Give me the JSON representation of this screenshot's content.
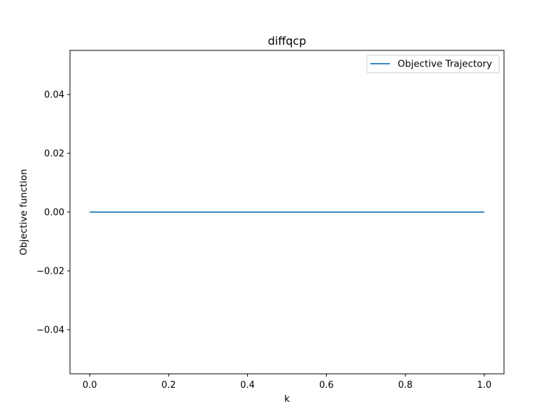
{
  "chart_data": {
    "type": "line",
    "title": "diffqcp",
    "xlabel": "k",
    "ylabel": "Objective function",
    "xlim": [
      -0.05,
      1.05
    ],
    "ylim": [
      -0.055,
      0.055
    ],
    "xticks": [
      0.0,
      0.2,
      0.4,
      0.6,
      0.8,
      1.0
    ],
    "xtick_labels": [
      "0.0",
      "0.2",
      "0.4",
      "0.6",
      "0.8",
      "1.0"
    ],
    "yticks": [
      -0.04,
      -0.02,
      0.0,
      0.02,
      0.04
    ],
    "ytick_labels": [
      "−0.04",
      "−0.02",
      "0.00",
      "0.02",
      "0.04"
    ],
    "grid": false,
    "legend_position": "top-right",
    "series": [
      {
        "name": "Objective Trajectory",
        "color": "#1f77b4",
        "x": [
          0.0,
          1.0
        ],
        "y": [
          0.0,
          0.0
        ]
      }
    ]
  }
}
